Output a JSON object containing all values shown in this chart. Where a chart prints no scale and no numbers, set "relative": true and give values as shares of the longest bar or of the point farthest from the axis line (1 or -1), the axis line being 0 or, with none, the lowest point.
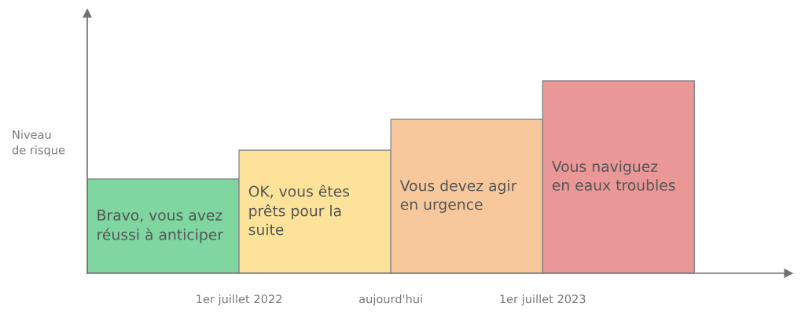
{
  "chart_data": {
    "type": "bar",
    "relative": true,
    "ylabel": "Niveau\nde risque",
    "categories": [
      null,
      null,
      null,
      null
    ],
    "values": [
      0.49,
      0.64,
      0.8,
      1
    ],
    "colors": [
      "#7fd6a1",
      "#fde39a",
      "#f7c89b",
      "#e99797"
    ],
    "annotations": [
      "Bravo, vous avez\nréussi à anticiper",
      "OK, vous êtes\nprêts pour la\nsuite",
      "Vous devez agir\nen urgence",
      "Vous naviguez\nen eaux troubles",
      "1er juillet 2022",
      "aujourd'hui",
      "1er juillet 2023"
    ]
  }
}
